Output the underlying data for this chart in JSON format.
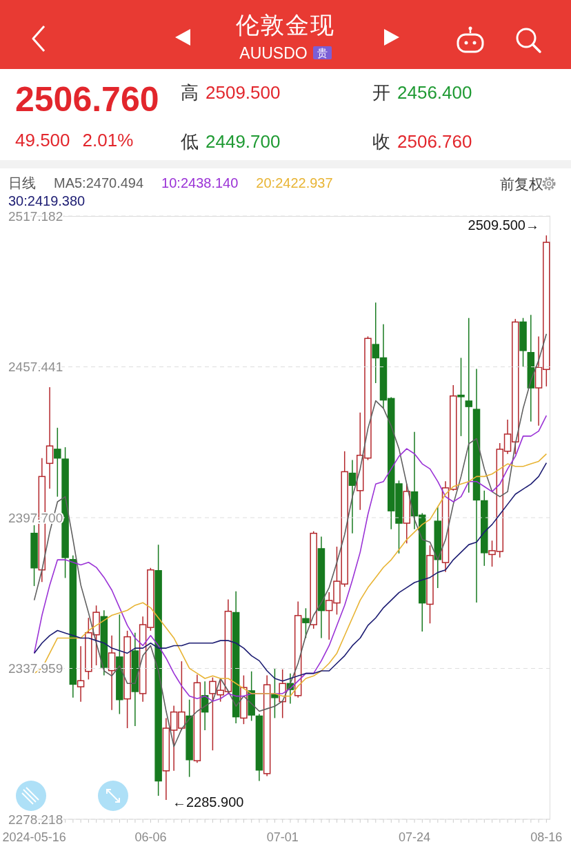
{
  "chart_data": {
    "type": "candlestick",
    "title": "伦敦金现",
    "subtitle": "AUUSDO",
    "annotations": [
      "贵",
      "2506.760",
      "49.500",
      "2.01%",
      "高",
      "2509.500",
      "开",
      "2456.400",
      "低",
      "2449.700",
      "收",
      "2506.760",
      "日线",
      "前复权",
      "2509.500→",
      "←2285.900"
    ],
    "categories": [
      "2024-05-16",
      null,
      null,
      null,
      null,
      null,
      null,
      null,
      null,
      null,
      null,
      null,
      null,
      null,
      null,
      "06-06",
      null,
      null,
      null,
      null,
      null,
      null,
      null,
      null,
      null,
      null,
      null,
      null,
      null,
      null,
      null,
      null,
      "07-01",
      null,
      null,
      null,
      null,
      null,
      null,
      null,
      null,
      null,
      null,
      null,
      null,
      null,
      null,
      null,
      null,
      "07-24",
      null,
      null,
      null,
      null,
      null,
      null,
      null,
      null,
      null,
      null,
      null,
      null,
      null,
      null,
      null,
      null,
      "08-16"
    ],
    "ohlc": [
      [
        2391.5,
        2394.7,
        2370.6,
        2377.8
      ],
      [
        2377.0,
        2421.3,
        2372.2,
        2414.0
      ],
      [
        2419.2,
        2449.4,
        2409.2,
        2426.1
      ],
      [
        2424.8,
        2433.3,
        2406.0,
        2421.3
      ],
      [
        2420.9,
        2425.6,
        2373.8,
        2381.9
      ],
      [
        2381.1,
        2382.7,
        2326.4,
        2331.7
      ],
      [
        2330.7,
        2346.8,
        2324.8,
        2333.1
      ],
      [
        2336.8,
        2358.0,
        2333.6,
        2352.1
      ],
      [
        2351.3,
        2362.9,
        2339.2,
        2360.2
      ],
      [
        2358.5,
        2361.0,
        2335.2,
        2338.4
      ],
      [
        2337.1,
        2351.0,
        2321.5,
        2344.1
      ],
      [
        2342.5,
        2359.3,
        2319.9,
        2325.6
      ],
      [
        2325.9,
        2352.9,
        2314.3,
        2350.5
      ],
      [
        2344.9,
        2352.1,
        2315.1,
        2328.8
      ],
      [
        2328.0,
        2358.5,
        2324.8,
        2355.3
      ],
      [
        2354.2,
        2377.8,
        2352.9,
        2377.0
      ],
      [
        2376.7,
        2387.0,
        2287.5,
        2293.4
      ],
      [
        2297.4,
        2318.3,
        2285.9,
        2314.3
      ],
      [
        2313.5,
        2323.2,
        2297.4,
        2320.7
      ],
      [
        2314.3,
        2340.8,
        2313.5,
        2320.7
      ],
      [
        2319.1,
        2325.6,
        2295.0,
        2301.8
      ],
      [
        2301.4,
        2335.5,
        2300.6,
        2332.3
      ],
      [
        2327.2,
        2332.8,
        2313.5,
        2320.7
      ],
      [
        2328.0,
        2334.4,
        2305.5,
        2332.8
      ],
      [
        2327.5,
        2333.9,
        2324.8,
        2329.3
      ],
      [
        2328.8,
        2365.3,
        2328.0,
        2360.6
      ],
      [
        2360.1,
        2368.5,
        2316.2,
        2318.8
      ],
      [
        2318.3,
        2335.2,
        2315.9,
        2330.4
      ],
      [
        2329.1,
        2336.8,
        2317.2,
        2319.5
      ],
      [
        2319.1,
        2319.9,
        2293.4,
        2297.7
      ],
      [
        2296.3,
        2335.2,
        2295.3,
        2331.5
      ],
      [
        2327.6,
        2337.9,
        2318.3,
        2326.4
      ],
      [
        2324.8,
        2337.6,
        2318.3,
        2332.0
      ],
      [
        2332.0,
        2336.0,
        2324.0,
        2329.6
      ],
      [
        2327.2,
        2364.5,
        2326.4,
        2358.9
      ],
      [
        2357.7,
        2361.8,
        2350.0,
        2356.1
      ],
      [
        2355.3,
        2392.3,
        2353.7,
        2391.5
      ],
      [
        2385.4,
        2390.2,
        2350.0,
        2360.9
      ],
      [
        2360.9,
        2368.2,
        2349.4,
        2364.9
      ],
      [
        2363.9,
        2386.2,
        2359.3,
        2372.5
      ],
      [
        2371.4,
        2424.0,
        2370.3,
        2415.9
      ],
      [
        2415.3,
        2420.5,
        2391.5,
        2410.5
      ],
      [
        2408.4,
        2439.3,
        2400.8,
        2422.4
      ],
      [
        2421.3,
        2469.5,
        2420.5,
        2468.7
      ],
      [
        2466.3,
        2482.9,
        2451.0,
        2461.0
      ],
      [
        2461.0,
        2474.3,
        2441.1,
        2444.3
      ],
      [
        2444.9,
        2445.4,
        2393.1,
        2400.4
      ],
      [
        2411.1,
        2412.4,
        2383.5,
        2395.5
      ],
      [
        2395.5,
        2411.1,
        2387.5,
        2408.1
      ],
      [
        2407.9,
        2431.7,
        2393.1,
        2398.4
      ],
      [
        2398.7,
        2399.5,
        2352.6,
        2363.9
      ],
      [
        2363.4,
        2386.7,
        2355.8,
        2382.7
      ],
      [
        2396.3,
        2402.0,
        2369.8,
        2381.1
      ],
      [
        2379.9,
        2412.1,
        2376.2,
        2409.5
      ],
      [
        2408.9,
        2450.2,
        2408.4,
        2445.9
      ],
      [
        2446.2,
        2461.0,
        2430.0,
        2445.6
      ],
      [
        2443.9,
        2476.8,
        2407.6,
        2441.7
      ],
      [
        2440.6,
        2456.6,
        2364.1,
        2404.7
      ],
      [
        2404.4,
        2408.4,
        2378.6,
        2383.8
      ],
      [
        2383.1,
        2388.6,
        2378.3,
        2384.6
      ],
      [
        2384.3,
        2427.2,
        2381.9,
        2424.8
      ],
      [
        2424.0,
        2436.5,
        2422.9,
        2430.8
      ],
      [
        2427.7,
        2476.4,
        2422.9,
        2475.2
      ],
      [
        2475.2,
        2476.8,
        2457.5,
        2463.9
      ],
      [
        2463.1,
        2478.0,
        2435.8,
        2449.1
      ],
      [
        2449.1,
        2469.5,
        2434.1,
        2457.26
      ],
      [
        2456.4,
        2509.5,
        2449.7,
        2506.76
      ]
    ],
    "colors": [
      "#177a1f",
      "#b3262b",
      "#b3262b",
      "#177a1f",
      "#177a1f",
      "#177a1f",
      "#b3262b",
      "#b3262b",
      "#b3262b",
      "#177a1f",
      "#b3262b",
      "#177a1f",
      "#b3262b",
      "#177a1f",
      "#b3262b",
      "#b3262b",
      "#177a1f",
      "#b3262b",
      "#b3262b",
      "#b3262b",
      "#177a1f",
      "#b3262b",
      "#177a1f",
      "#b3262b",
      "#b3262b",
      "#b3262b",
      "#177a1f",
      "#b3262b",
      "#177a1f",
      "#177a1f",
      "#b3262b",
      "#177a1f",
      "#b3262b",
      "#177a1f",
      "#b3262b",
      "#177a1f",
      "#b3262b",
      "#177a1f",
      "#b3262b",
      "#b3262b",
      "#b3262b",
      "#177a1f",
      "#b3262b",
      "#b3262b",
      "#177a1f",
      "#177a1f",
      "#177a1f",
      "#177a1f",
      "#b3262b",
      "#177a1f",
      "#177a1f",
      "#b3262b",
      "#177a1f",
      "#b3262b",
      "#b3262b",
      "#177a1f",
      "#177a1f",
      "#177a1f",
      "#177a1f",
      "#b3262b",
      "#b3262b",
      "#b3262b",
      "#b3262b",
      "#177a1f",
      "#177a1f",
      "#b3262b",
      "#b3262b"
    ],
    "series": [
      {
        "type": "line",
        "name": "MA5:2470.494",
        "color": "#5f5f5f",
        "values": [
          2365,
          2377,
          2392,
          2404,
          2406,
          2389,
          2371,
          2360,
          2348,
          2337,
          2335,
          2339,
          2332,
          2332,
          2343,
          2347,
          2337,
          2321,
          2307,
          2314,
          2318,
          2321,
          2323,
          2325,
          2334,
          2329,
          2323,
          2327,
          2324,
          2321,
          2322,
          2323,
          2325,
          2332,
          2340,
          2351,
          2359,
          2364,
          2370,
          2380,
          2391,
          2406,
          2417,
          2433,
          2444,
          2441,
          2434,
          2425,
          2411,
          2397,
          2389,
          2388,
          2381,
          2389,
          2403,
          2414,
          2427,
          2429,
          2417,
          2408,
          2406,
          2408,
          2427,
          2441,
          2452,
          2460,
          2470.494
        ]
      },
      {
        "type": "line",
        "name": "10:2438.140",
        "color": "#9a32d6",
        "values": [
          2344,
          2359,
          2371,
          2381,
          2381,
          2380,
          2379,
          2380,
          2378,
          2374,
          2369,
          2362,
          2355,
          2350,
          2347,
          2351,
          2347,
          2342,
          2336,
          2331,
          2327,
          2326,
          2327,
          2325,
          2326,
          2328,
          2327,
          2327,
          2328,
          2328,
          2328,
          2328,
          2328,
          2330,
          2333,
          2336,
          2336,
          2341,
          2347,
          2355,
          2363,
          2373,
          2384,
          2399,
          2411,
          2412,
          2417,
          2422,
          2425,
          2423,
          2419,
          2417,
          2412,
          2406,
          2404,
          2406,
          2412,
          2412,
          2410,
          2408,
          2411,
          2417,
          2422,
          2430,
          2430,
          2432,
          2438.14
        ]
      },
      {
        "type": "line",
        "name": "20:2422.937",
        "color": "#e8b434",
        "values": [
          2336,
          2338,
          2344,
          2350,
          2350,
          2350,
          2350,
          2353,
          2355,
          2357,
          2359,
          2360,
          2361,
          2363,
          2364,
          2362,
          2358,
          2354,
          2350,
          2344,
          2338,
          2336,
          2334,
          2335,
          2334,
          2334,
          2332,
          2330,
          2328,
          2328,
          2328,
          2328,
          2327,
          2327,
          2331,
          2334,
          2335,
          2337,
          2340,
          2344,
          2351,
          2358,
          2365,
          2370,
          2374,
          2378,
          2381,
          2385,
          2389,
          2392,
          2395,
          2397,
          2402,
          2407,
          2410,
          2411,
          2412,
          2414,
          2414,
          2415,
          2417,
          2419,
          2418,
          2418,
          2419,
          2420,
          2422.937
        ]
      },
      {
        "type": "line",
        "name": "30:2419.380",
        "color": "#1c1c72",
        "values": [
          2344,
          2348,
          2351,
          2353,
          2352,
          2351,
          2350,
          2350,
          2349,
          2348,
          2346,
          2345,
          2344,
          2346,
          2346,
          2348,
          2346,
          2346,
          2347,
          2347,
          2348,
          2348,
          2348,
          2348,
          2349,
          2349,
          2348,
          2346,
          2343,
          2341,
          2337,
          2334,
          2333,
          2334,
          2335,
          2336,
          2336,
          2337,
          2337,
          2340,
          2343,
          2347,
          2350,
          2355,
          2358,
          2362,
          2365,
          2368,
          2370,
          2372,
          2373,
          2374,
          2376,
          2377,
          2381,
          2384,
          2387,
          2388,
          2392,
          2395,
          2399,
          2403,
          2407,
          2409,
          2411,
          2414,
          2419.38
        ]
      }
    ],
    "ylim": [
      2278.218,
      2517.182
    ],
    "yticks": [
      2517.182,
      2457.441,
      {
        "value": 2397.7,
        "label": "2397.700"
      },
      2337.959,
      2278.218
    ],
    "grid": "y",
    "legend": "top left",
    "marker": "none",
    "line_style": "solid"
  }
}
